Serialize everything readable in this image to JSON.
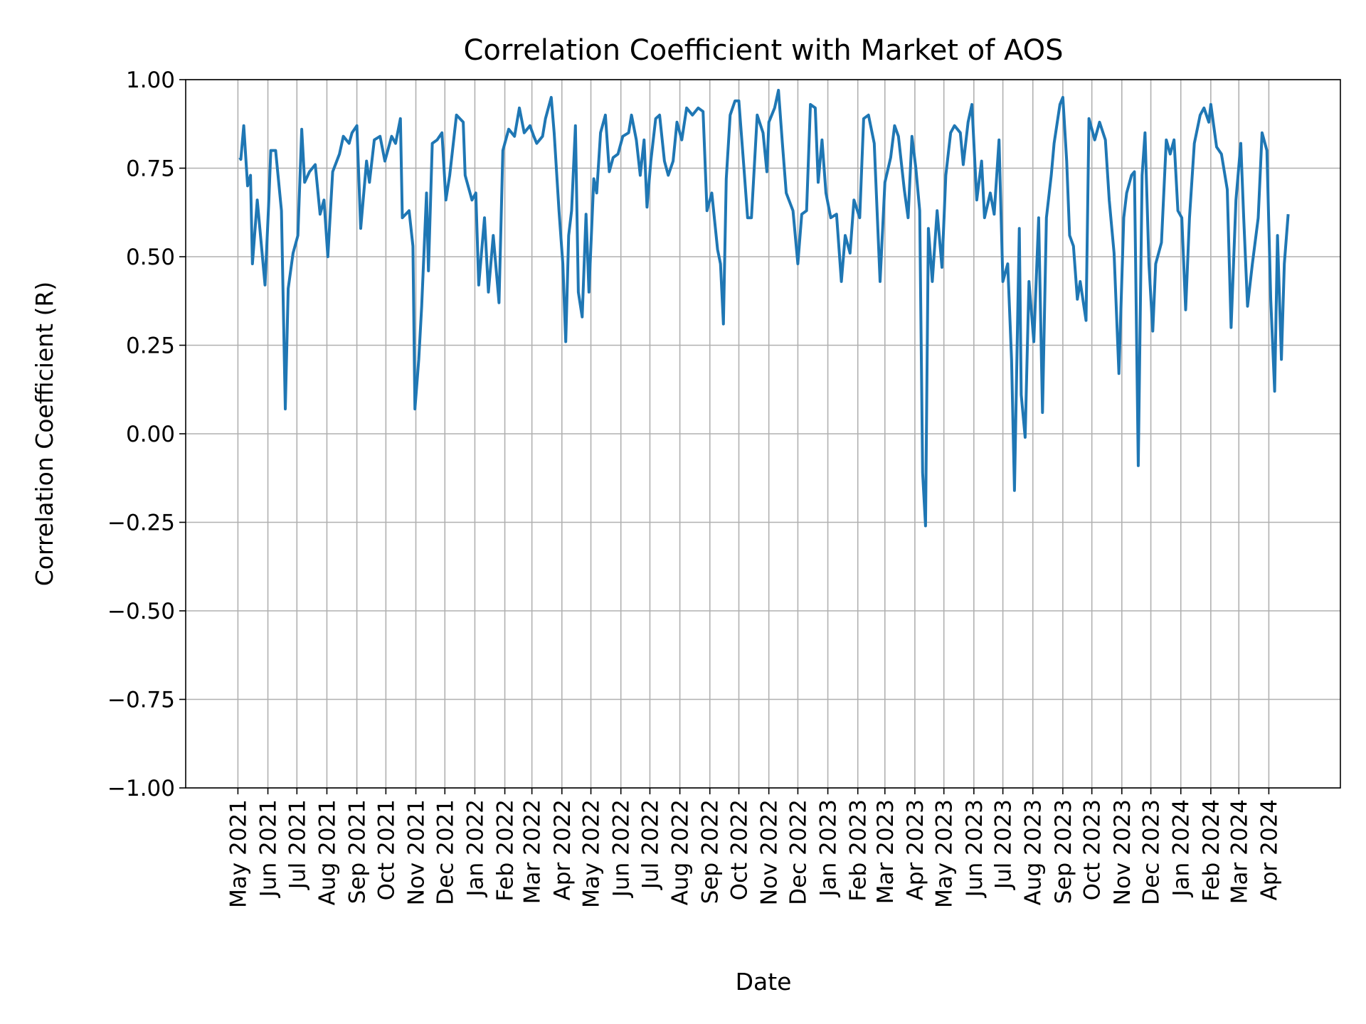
{
  "chart_data": {
    "type": "line",
    "title": "Correlation Coefficient with Market of AOS",
    "xlabel": "Date",
    "ylabel": "Correlation Coefficient (R)",
    "xlim": [
      "2021-03-08",
      "2024-06-14"
    ],
    "ylim": [
      -1.0,
      1.0
    ],
    "grid": true,
    "line_color": "#1f77b4",
    "grid_color": "#b0b0b0",
    "y_ticks": [
      -1.0,
      -0.75,
      -0.5,
      -0.25,
      0.0,
      0.25,
      0.5,
      0.75,
      1.0
    ],
    "y_tick_labels": [
      "−1.00",
      "−0.75",
      "−0.50",
      "−0.25",
      "0.00",
      "0.25",
      "0.50",
      "0.75",
      "1.00"
    ],
    "x_ticks": [
      "2021-05-01",
      "2021-06-01",
      "2021-07-01",
      "2021-08-01",
      "2021-09-01",
      "2021-10-01",
      "2021-11-01",
      "2021-12-01",
      "2022-01-01",
      "2022-02-01",
      "2022-03-01",
      "2022-04-01",
      "2022-05-01",
      "2022-06-01",
      "2022-07-01",
      "2022-08-01",
      "2022-09-01",
      "2022-10-01",
      "2022-11-01",
      "2022-12-01",
      "2023-01-01",
      "2023-02-01",
      "2023-03-01",
      "2023-04-01",
      "2023-05-01",
      "2023-06-01",
      "2023-07-01",
      "2023-08-01",
      "2023-09-01",
      "2023-10-01",
      "2023-11-01",
      "2023-12-01",
      "2024-01-01",
      "2024-02-01",
      "2024-03-01",
      "2024-04-01"
    ],
    "x_tick_labels": [
      "May 2021",
      "Jun 2021",
      "Jul 2021",
      "Aug 2021",
      "Sep 2021",
      "Oct 2021",
      "Nov 2021",
      "Dec 2021",
      "Jan 2022",
      "Feb 2022",
      "Mar 2022",
      "Apr 2022",
      "May 2022",
      "Jun 2022",
      "Jul 2022",
      "Aug 2022",
      "Sep 2022",
      "Oct 2022",
      "Nov 2022",
      "Dec 2022",
      "Jan 2023",
      "Feb 2023",
      "Mar 2023",
      "Apr 2023",
      "May 2023",
      "Jun 2023",
      "Jul 2023",
      "Aug 2023",
      "Sep 2023",
      "Oct 2023",
      "Nov 2023",
      "Dec 2023",
      "Jan 2024",
      "Feb 2024",
      "Mar 2024",
      "Apr 2024"
    ],
    "series": [
      {
        "points": [
          [
            "2021-05-03",
            0.78
          ],
          [
            "2021-05-04",
            0.775
          ],
          [
            "2021-05-07",
            0.87
          ],
          [
            "2021-05-11",
            0.7
          ],
          [
            "2021-05-14",
            0.73
          ],
          [
            "2021-05-16",
            0.48
          ],
          [
            "2021-05-21",
            0.66
          ],
          [
            "2021-05-29",
            0.42
          ],
          [
            "2021-06-02",
            0.66
          ],
          [
            "2021-06-04",
            0.8
          ],
          [
            "2021-06-09",
            0.8
          ],
          [
            "2021-06-15",
            0.63
          ],
          [
            "2021-06-19",
            0.07
          ],
          [
            "2021-06-22",
            0.41
          ],
          [
            "2021-06-27",
            0.51
          ],
          [
            "2021-07-02",
            0.56
          ],
          [
            "2021-07-06",
            0.86
          ],
          [
            "2021-07-09",
            0.71
          ],
          [
            "2021-07-14",
            0.74
          ],
          [
            "2021-07-20",
            0.76
          ],
          [
            "2021-07-25",
            0.62
          ],
          [
            "2021-07-29",
            0.66
          ],
          [
            "2021-08-02",
            0.5
          ],
          [
            "2021-08-07",
            0.74
          ],
          [
            "2021-08-14",
            0.79
          ],
          [
            "2021-08-18",
            0.84
          ],
          [
            "2021-08-24",
            0.82
          ],
          [
            "2021-08-27",
            0.85
          ],
          [
            "2021-09-01",
            0.87
          ],
          [
            "2021-09-05",
            0.58
          ],
          [
            "2021-09-11",
            0.77
          ],
          [
            "2021-09-14",
            0.71
          ],
          [
            "2021-09-19",
            0.83
          ],
          [
            "2021-09-25",
            0.84
          ],
          [
            "2021-09-30",
            0.77
          ],
          [
            "2021-10-07",
            0.84
          ],
          [
            "2021-10-11",
            0.82
          ],
          [
            "2021-10-16",
            0.89
          ],
          [
            "2021-10-18",
            0.61
          ],
          [
            "2021-10-25",
            0.63
          ],
          [
            "2021-10-29",
            0.53
          ],
          [
            "2021-10-31",
            0.07
          ],
          [
            "2021-11-04",
            0.21
          ],
          [
            "2021-11-07",
            0.36
          ],
          [
            "2021-11-12",
            0.68
          ],
          [
            "2021-11-14",
            0.46
          ],
          [
            "2021-11-18",
            0.82
          ],
          [
            "2021-11-23",
            0.83
          ],
          [
            "2021-11-28",
            0.85
          ],
          [
            "2021-12-02",
            0.66
          ],
          [
            "2021-12-06",
            0.73
          ],
          [
            "2021-12-13",
            0.9
          ],
          [
            "2021-12-20",
            0.88
          ],
          [
            "2021-12-22",
            0.73
          ],
          [
            "2021-12-29",
            0.66
          ],
          [
            "2022-01-02",
            0.68
          ],
          [
            "2022-01-05",
            0.42
          ],
          [
            "2022-01-11",
            0.61
          ],
          [
            "2022-01-15",
            0.4
          ],
          [
            "2022-01-20",
            0.56
          ],
          [
            "2022-01-26",
            0.37
          ],
          [
            "2022-01-30",
            0.8
          ],
          [
            "2022-02-05",
            0.86
          ],
          [
            "2022-02-11",
            0.84
          ],
          [
            "2022-02-16",
            0.92
          ],
          [
            "2022-02-21",
            0.85
          ],
          [
            "2022-02-27",
            0.87
          ],
          [
            "2022-03-03",
            0.84
          ],
          [
            "2022-03-06",
            0.82
          ],
          [
            "2022-03-12",
            0.84
          ],
          [
            "2022-03-15",
            0.89
          ],
          [
            "2022-03-21",
            0.95
          ],
          [
            "2022-03-24",
            0.85
          ],
          [
            "2022-03-29",
            0.63
          ],
          [
            "2022-04-02",
            0.48
          ],
          [
            "2022-04-05",
            0.26
          ],
          [
            "2022-04-08",
            0.56
          ],
          [
            "2022-04-11",
            0.63
          ],
          [
            "2022-04-15",
            0.87
          ],
          [
            "2022-04-18",
            0.4
          ],
          [
            "2022-04-22",
            0.33
          ],
          [
            "2022-04-26",
            0.62
          ],
          [
            "2022-04-29",
            0.4
          ],
          [
            "2022-05-04",
            0.72
          ],
          [
            "2022-05-07",
            0.68
          ],
          [
            "2022-05-11",
            0.85
          ],
          [
            "2022-05-16",
            0.9
          ],
          [
            "2022-05-20",
            0.74
          ],
          [
            "2022-05-24",
            0.78
          ],
          [
            "2022-05-29",
            0.79
          ],
          [
            "2022-06-03",
            0.84
          ],
          [
            "2022-06-09",
            0.85
          ],
          [
            "2022-06-12",
            0.9
          ],
          [
            "2022-06-17",
            0.83
          ],
          [
            "2022-06-21",
            0.73
          ],
          [
            "2022-06-25",
            0.83
          ],
          [
            "2022-06-28",
            0.64
          ],
          [
            "2022-07-02",
            0.77
          ],
          [
            "2022-07-07",
            0.89
          ],
          [
            "2022-07-11",
            0.9
          ],
          [
            "2022-07-16",
            0.77
          ],
          [
            "2022-07-20",
            0.73
          ],
          [
            "2022-07-25",
            0.77
          ],
          [
            "2022-07-29",
            0.88
          ],
          [
            "2022-08-03",
            0.83
          ],
          [
            "2022-08-08",
            0.92
          ],
          [
            "2022-08-14",
            0.9
          ],
          [
            "2022-08-20",
            0.92
          ],
          [
            "2022-08-25",
            0.91
          ],
          [
            "2022-08-29",
            0.63
          ],
          [
            "2022-09-03",
            0.68
          ],
          [
            "2022-09-09",
            0.52
          ],
          [
            "2022-09-12",
            0.48
          ],
          [
            "2022-09-15",
            0.31
          ],
          [
            "2022-09-18",
            0.72
          ],
          [
            "2022-09-22",
            0.9
          ],
          [
            "2022-09-27",
            0.94
          ],
          [
            "2022-10-01",
            0.94
          ],
          [
            "2022-10-06",
            0.76
          ],
          [
            "2022-10-10",
            0.61
          ],
          [
            "2022-10-14",
            0.61
          ],
          [
            "2022-10-20",
            0.9
          ],
          [
            "2022-10-26",
            0.85
          ],
          [
            "2022-10-30",
            0.74
          ],
          [
            "2022-11-01",
            0.88
          ],
          [
            "2022-11-07",
            0.92
          ],
          [
            "2022-11-11",
            0.97
          ],
          [
            "2022-11-15",
            0.82
          ],
          [
            "2022-11-19",
            0.68
          ],
          [
            "2022-11-26",
            0.63
          ],
          [
            "2022-12-01",
            0.48
          ],
          [
            "2022-12-05",
            0.62
          ],
          [
            "2022-12-10",
            0.63
          ],
          [
            "2022-12-14",
            0.93
          ],
          [
            "2022-12-19",
            0.92
          ],
          [
            "2022-12-22",
            0.71
          ],
          [
            "2022-12-26",
            0.83
          ],
          [
            "2022-12-30",
            0.68
          ],
          [
            "2023-01-04",
            0.61
          ],
          [
            "2023-01-10",
            0.62
          ],
          [
            "2023-01-15",
            0.43
          ],
          [
            "2023-01-19",
            0.56
          ],
          [
            "2023-01-24",
            0.51
          ],
          [
            "2023-01-28",
            0.66
          ],
          [
            "2023-02-03",
            0.61
          ],
          [
            "2023-02-07",
            0.89
          ],
          [
            "2023-02-12",
            0.9
          ],
          [
            "2023-02-18",
            0.82
          ],
          [
            "2023-02-24",
            0.43
          ],
          [
            "2023-03-01",
            0.71
          ],
          [
            "2023-03-07",
            0.78
          ],
          [
            "2023-03-11",
            0.87
          ],
          [
            "2023-03-15",
            0.84
          ],
          [
            "2023-03-21",
            0.69
          ],
          [
            "2023-03-25",
            0.61
          ],
          [
            "2023-03-29",
            0.84
          ],
          [
            "2023-04-02",
            0.75
          ],
          [
            "2023-04-06",
            0.63
          ],
          [
            "2023-04-09",
            -0.11
          ],
          [
            "2023-04-12",
            -0.26
          ],
          [
            "2023-04-15",
            0.58
          ],
          [
            "2023-04-19",
            0.43
          ],
          [
            "2023-04-24",
            0.63
          ],
          [
            "2023-04-29",
            0.47
          ],
          [
            "2023-05-03",
            0.73
          ],
          [
            "2023-05-08",
            0.85
          ],
          [
            "2023-05-12",
            0.87
          ],
          [
            "2023-05-18",
            0.85
          ],
          [
            "2023-05-21",
            0.76
          ],
          [
            "2023-05-26",
            0.88
          ],
          [
            "2023-05-30",
            0.93
          ],
          [
            "2023-06-04",
            0.66
          ],
          [
            "2023-06-09",
            0.77
          ],
          [
            "2023-06-12",
            0.61
          ],
          [
            "2023-06-18",
            0.68
          ],
          [
            "2023-06-22",
            0.62
          ],
          [
            "2023-06-27",
            0.83
          ],
          [
            "2023-07-01",
            0.43
          ],
          [
            "2023-07-06",
            0.48
          ],
          [
            "2023-07-10",
            0.21
          ],
          [
            "2023-07-13",
            -0.16
          ],
          [
            "2023-07-18",
            0.58
          ],
          [
            "2023-07-20",
            0.11
          ],
          [
            "2023-07-24",
            -0.01
          ],
          [
            "2023-07-28",
            0.43
          ],
          [
            "2023-08-02",
            0.26
          ],
          [
            "2023-08-07",
            0.61
          ],
          [
            "2023-08-11",
            0.06
          ],
          [
            "2023-08-15",
            0.61
          ],
          [
            "2023-08-20",
            0.73
          ],
          [
            "2023-08-23",
            0.82
          ],
          [
            "2023-08-29",
            0.93
          ],
          [
            "2023-09-01",
            0.95
          ],
          [
            "2023-09-05",
            0.77
          ],
          [
            "2023-09-08",
            0.56
          ],
          [
            "2023-09-12",
            0.53
          ],
          [
            "2023-09-16",
            0.38
          ],
          [
            "2023-09-19",
            0.43
          ],
          [
            "2023-09-25",
            0.32
          ],
          [
            "2023-09-28",
            0.89
          ],
          [
            "2023-10-04",
            0.83
          ],
          [
            "2023-10-09",
            0.88
          ],
          [
            "2023-10-15",
            0.83
          ],
          [
            "2023-10-19",
            0.66
          ],
          [
            "2023-10-24",
            0.51
          ],
          [
            "2023-10-29",
            0.17
          ],
          [
            "2023-11-03",
            0.61
          ],
          [
            "2023-11-06",
            0.68
          ],
          [
            "2023-11-11",
            0.73
          ],
          [
            "2023-11-14",
            0.74
          ],
          [
            "2023-11-18",
            -0.09
          ],
          [
            "2023-11-22",
            0.73
          ],
          [
            "2023-11-25",
            0.85
          ],
          [
            "2023-11-29",
            0.48
          ],
          [
            "2023-12-03",
            0.29
          ],
          [
            "2023-12-06",
            0.48
          ],
          [
            "2023-12-12",
            0.54
          ],
          [
            "2023-12-17",
            0.83
          ],
          [
            "2023-12-21",
            0.79
          ],
          [
            "2023-12-25",
            0.83
          ],
          [
            "2023-12-29",
            0.63
          ],
          [
            "2024-01-02",
            0.61
          ],
          [
            "2024-01-06",
            0.35
          ],
          [
            "2024-01-10",
            0.61
          ],
          [
            "2024-01-15",
            0.82
          ],
          [
            "2024-01-21",
            0.9
          ],
          [
            "2024-01-25",
            0.92
          ],
          [
            "2024-01-30",
            0.88
          ],
          [
            "2024-02-01",
            0.93
          ],
          [
            "2024-02-07",
            0.81
          ],
          [
            "2024-02-12",
            0.79
          ],
          [
            "2024-02-18",
            0.69
          ],
          [
            "2024-02-22",
            0.3
          ],
          [
            "2024-02-27",
            0.66
          ],
          [
            "2024-03-03",
            0.82
          ],
          [
            "2024-03-06",
            0.61
          ],
          [
            "2024-03-10",
            0.36
          ],
          [
            "2024-03-15",
            0.48
          ],
          [
            "2024-03-21",
            0.61
          ],
          [
            "2024-03-25",
            0.85
          ],
          [
            "2024-03-30",
            0.8
          ],
          [
            "2024-04-03",
            0.38
          ],
          [
            "2024-04-07",
            0.12
          ],
          [
            "2024-04-10",
            0.56
          ],
          [
            "2024-04-14",
            0.21
          ],
          [
            "2024-04-17",
            0.48
          ],
          [
            "2024-04-21",
            0.62
          ]
        ]
      }
    ]
  }
}
